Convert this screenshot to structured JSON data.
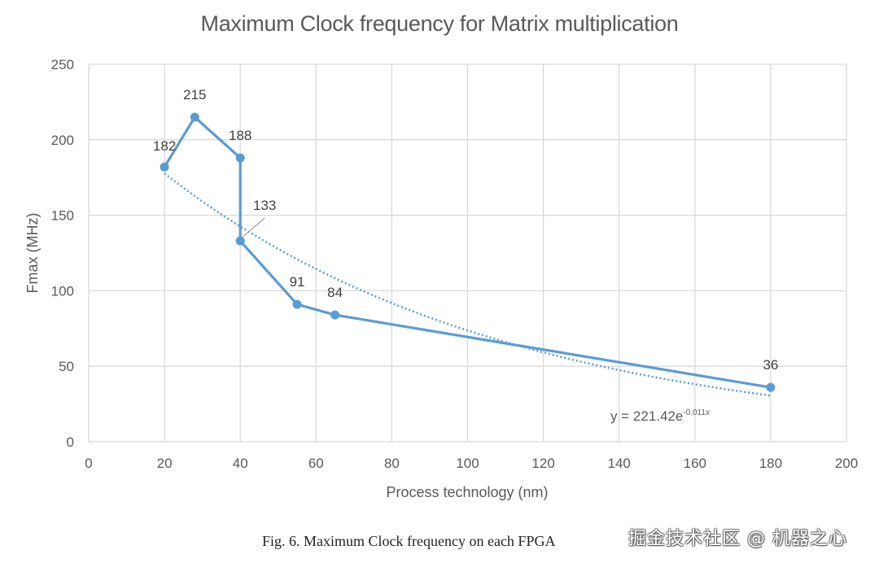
{
  "chart_data": {
    "type": "line",
    "title": "Maximum Clock frequency for Matrix multiplication",
    "xlabel": "Process technology (nm)",
    "ylabel": "Fmax (MHz)",
    "xlim": [
      0,
      200
    ],
    "ylim": [
      0,
      250
    ],
    "xticks": [
      0,
      20,
      40,
      60,
      80,
      100,
      120,
      140,
      160,
      180,
      200
    ],
    "yticks": [
      0,
      50,
      100,
      150,
      200,
      250
    ],
    "grid": true,
    "series": [
      {
        "name": "Fmax",
        "color": "#5b9bd5",
        "points": [
          {
            "x": 20,
            "y": 182,
            "label": "182"
          },
          {
            "x": 28,
            "y": 215,
            "label": "215"
          },
          {
            "x": 40,
            "y": 188,
            "label": "188"
          },
          {
            "x": 40,
            "y": 133,
            "label": "133"
          },
          {
            "x": 55,
            "y": 91,
            "label": "91"
          },
          {
            "x": 65,
            "y": 84,
            "label": "84"
          },
          {
            "x": 180,
            "y": 36,
            "label": "36"
          }
        ]
      }
    ],
    "trendline": {
      "type": "exponential",
      "a": 221.42,
      "b": -0.011,
      "x_range": [
        20,
        180
      ],
      "style": "dotted",
      "color": "#5b9bd5",
      "equation_base": "y = 221.42e",
      "equation_exp": "-0.011x"
    }
  },
  "caption": "Fig. 6.  Maximum Clock frequency on each FPGA",
  "watermark": "掘金技术社区 @ 机器之心"
}
